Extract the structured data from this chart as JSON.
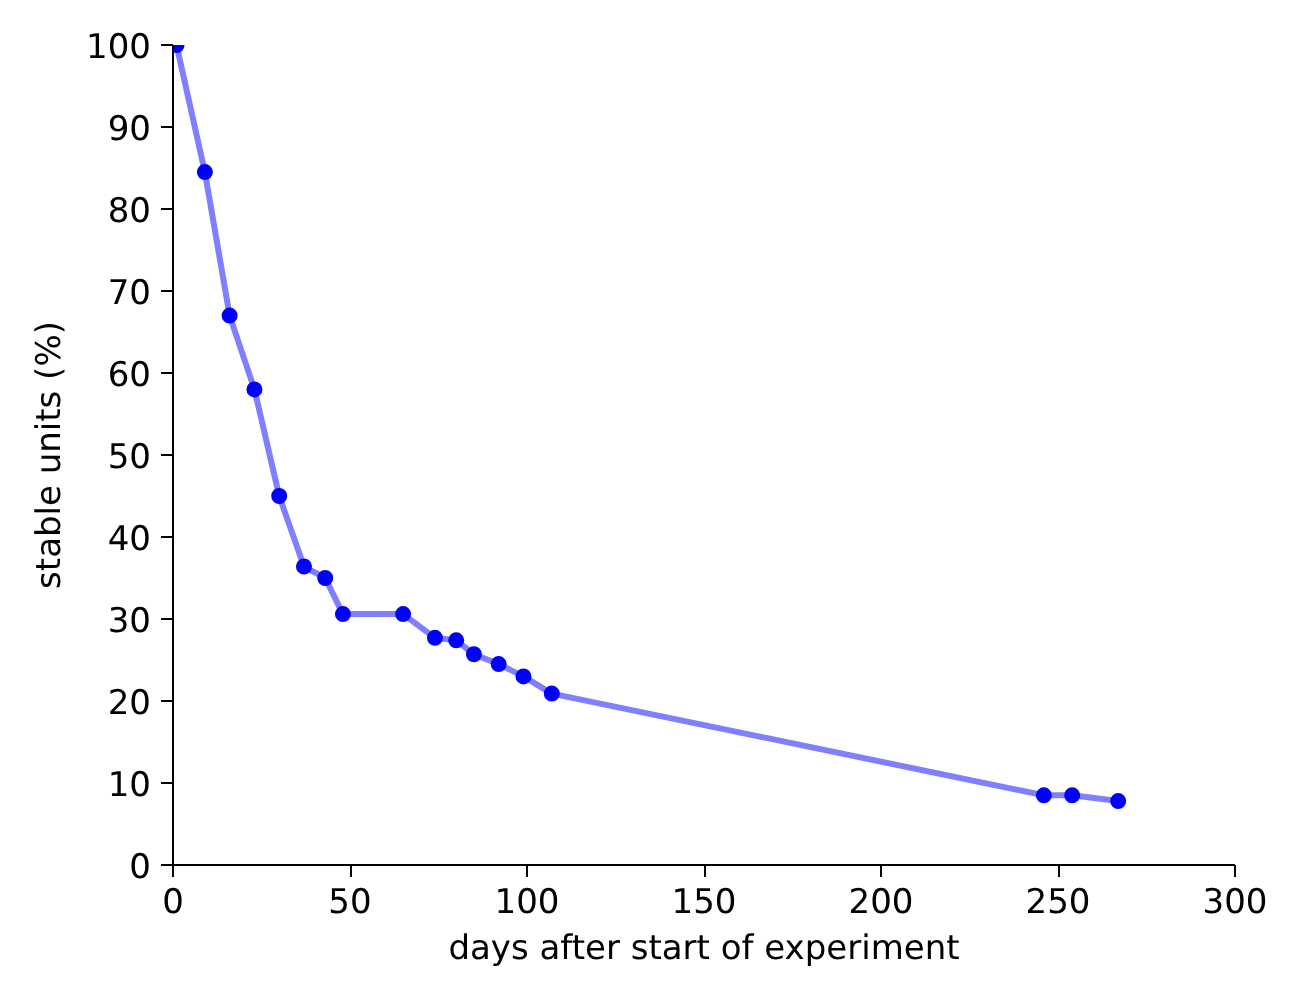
{
  "chart_data": {
    "type": "line",
    "xlabel": "days after start of experiment",
    "ylabel": "stable units (%)",
    "x": [
      1,
      9,
      16,
      23,
      30,
      37,
      43,
      48,
      65,
      74,
      80,
      85,
      92,
      99,
      107,
      246,
      254,
      267
    ],
    "series": [
      {
        "color": "#0000ff",
        "values": [
          100,
          84.5,
          67,
          58,
          45,
          36.4,
          35,
          30.6,
          30.6,
          27.7,
          27.4,
          25.7,
          24.5,
          23,
          20.9,
          8.5,
          8.5,
          7.8
        ]
      }
    ],
    "xlim": [
      0,
      300
    ],
    "ylim": [
      0,
      100
    ],
    "xticks": [
      0,
      50,
      100,
      150,
      200,
      250,
      300
    ],
    "yticks": [
      0,
      10,
      20,
      30,
      40,
      50,
      60,
      70,
      80,
      90,
      100
    ],
    "grid": false,
    "marker": "circle",
    "line_style": "solid"
  }
}
